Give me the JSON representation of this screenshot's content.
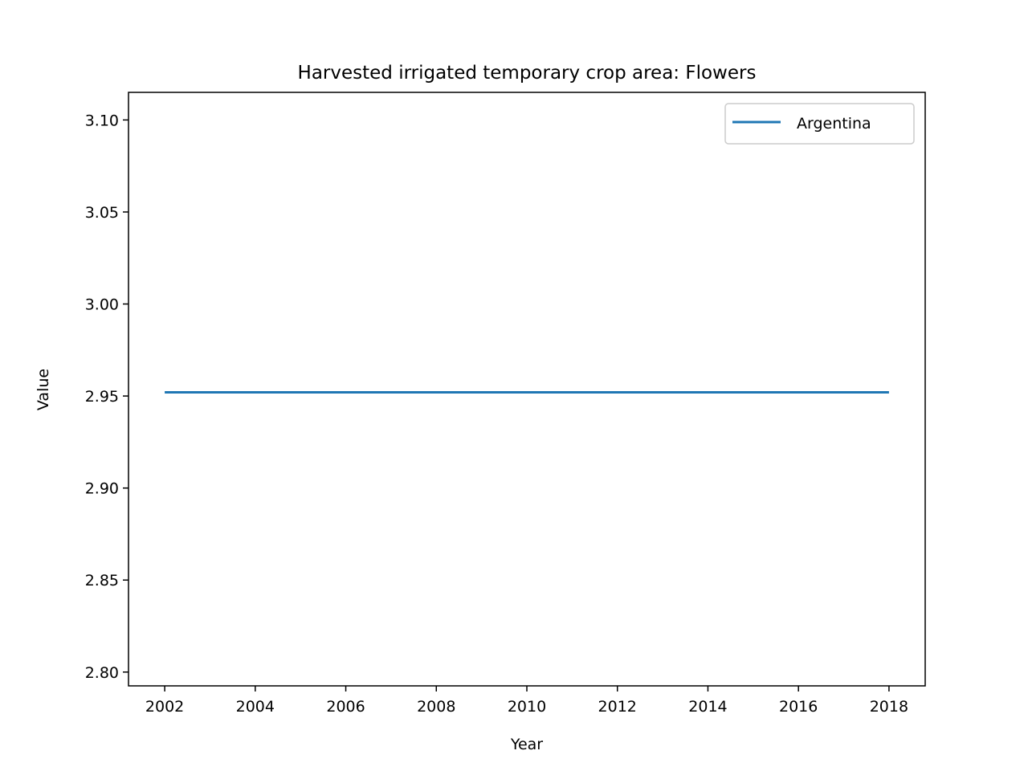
{
  "chart_data": {
    "type": "line",
    "title": "Harvested irrigated temporary crop area: Flowers",
    "xlabel": "Year",
    "ylabel": "Value",
    "xlim": [
      2001.2,
      2018.8
    ],
    "ylim": [
      2.7925,
      3.115
    ],
    "x_ticks": [
      2002,
      2004,
      2006,
      2008,
      2010,
      2012,
      2014,
      2016,
      2018
    ],
    "x_tick_labels": [
      "2002",
      "2004",
      "2006",
      "2008",
      "2010",
      "2012",
      "2014",
      "2016",
      "2018"
    ],
    "y_ticks": [
      2.8,
      2.85,
      2.9,
      2.95,
      3.0,
      3.05,
      3.1
    ],
    "y_tick_labels": [
      "2.80",
      "2.85",
      "2.90",
      "2.95",
      "3.00",
      "3.05",
      "3.10"
    ],
    "grid": false,
    "legend_position": "top-right",
    "series": [
      {
        "name": "Argentina",
        "color": "#1f77b4",
        "x": [
          2002,
          2003,
          2004,
          2005,
          2006,
          2007,
          2008,
          2009,
          2010,
          2011,
          2012,
          2013,
          2014,
          2015,
          2016,
          2017,
          2018
        ],
        "y": [
          2.952,
          2.952,
          2.952,
          2.952,
          2.952,
          2.952,
          2.952,
          2.952,
          2.952,
          2.952,
          2.952,
          2.952,
          2.952,
          2.952,
          2.952,
          2.952,
          2.952
        ]
      }
    ]
  }
}
